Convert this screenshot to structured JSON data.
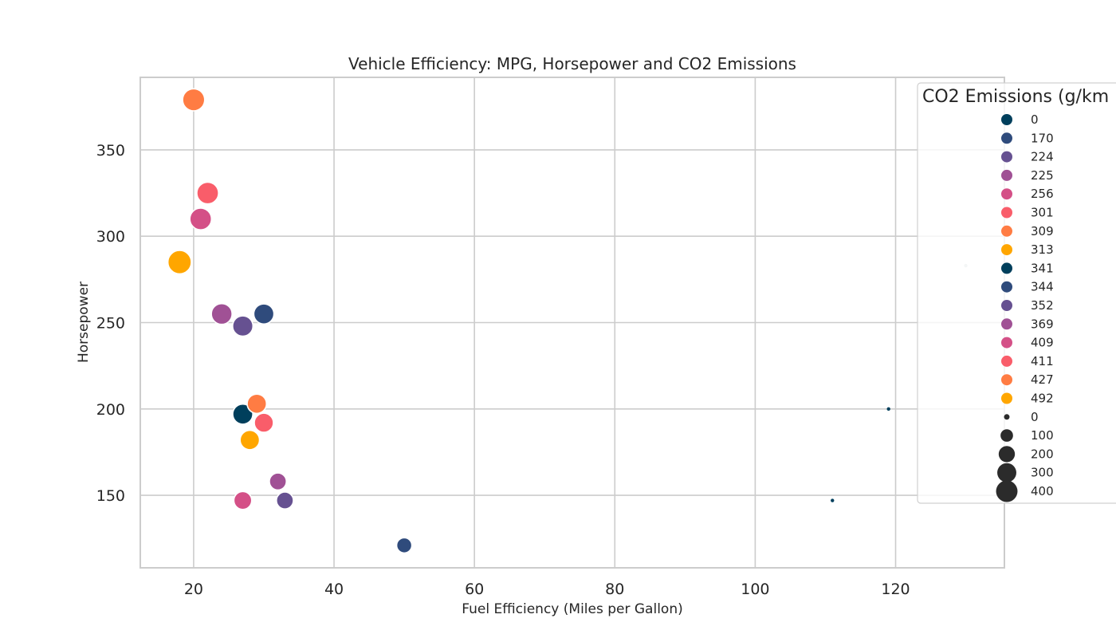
{
  "chart_data": {
    "type": "scatter",
    "title": "Vehicle Efficiency: MPG, Horsepower and CO2 Emissions",
    "xlabel": "Fuel Efficiency (Miles per Gallon)",
    "ylabel": "Horsepower",
    "xlim": [
      12.4,
      135.5
    ],
    "ylim": [
      108,
      392
    ],
    "xticks": [
      20,
      40,
      60,
      80,
      100,
      120
    ],
    "yticks": [
      150,
      200,
      250,
      300,
      350
    ],
    "grid": true,
    "legend_position": "right",
    "legend_title": "CO2 Emissions (g/km",
    "points": [
      {
        "mpg": 20,
        "hp": 379,
        "co2": 427
      },
      {
        "mpg": 22,
        "hp": 325,
        "co2": 411
      },
      {
        "mpg": 21,
        "hp": 310,
        "co2": 409
      },
      {
        "mpg": 18,
        "hp": 285,
        "co2": 492
      },
      {
        "mpg": 24,
        "hp": 255,
        "co2": 369
      },
      {
        "mpg": 27,
        "hp": 248,
        "co2": 352
      },
      {
        "mpg": 30,
        "hp": 255,
        "co2": 344
      },
      {
        "mpg": 27,
        "hp": 197,
        "co2": 341
      },
      {
        "mpg": 29,
        "hp": 203,
        "co2": 309
      },
      {
        "mpg": 30,
        "hp": 192,
        "co2": 301
      },
      {
        "mpg": 28,
        "hp": 182,
        "co2": 313
      },
      {
        "mpg": 32,
        "hp": 158,
        "co2": 225
      },
      {
        "mpg": 27,
        "hp": 147,
        "co2": 256
      },
      {
        "mpg": 33,
        "hp": 147,
        "co2": 224
      },
      {
        "mpg": 50,
        "hp": 121,
        "co2": 170
      },
      {
        "mpg": 111,
        "hp": 147,
        "co2": 0
      },
      {
        "mpg": 119,
        "hp": 200,
        "co2": 0
      },
      {
        "mpg": 130,
        "hp": 283,
        "co2": 0
      }
    ],
    "hue_legend": [
      {
        "label": "0",
        "color": "#003f5c"
      },
      {
        "label": "170",
        "color": "#2f4b7c"
      },
      {
        "label": "224",
        "color": "#665191"
      },
      {
        "label": "225",
        "color": "#a05195"
      },
      {
        "label": "256",
        "color": "#d45087"
      },
      {
        "label": "301",
        "color": "#f95d6a"
      },
      {
        "label": "309",
        "color": "#ff7c43"
      },
      {
        "label": "313",
        "color": "#ffa600"
      },
      {
        "label": "341",
        "color": "#003f5c"
      },
      {
        "label": "344",
        "color": "#2f4b7c"
      },
      {
        "label": "352",
        "color": "#665191"
      },
      {
        "label": "369",
        "color": "#a05195"
      },
      {
        "label": "409",
        "color": "#d45087"
      },
      {
        "label": "411",
        "color": "#f95d6a"
      },
      {
        "label": "427",
        "color": "#ff7c43"
      },
      {
        "label": "492",
        "color": "#ffa600"
      }
    ],
    "size_legend": [
      {
        "label": "0",
        "value": 0
      },
      {
        "label": "100",
        "value": 100
      },
      {
        "label": "200",
        "value": 200
      },
      {
        "label": "300",
        "value": 300
      },
      {
        "label": "400",
        "value": 400
      }
    ],
    "size_marker_color": "#2b2b2b",
    "grid_color": "#cccccc",
    "frame_color": "#cccccc"
  }
}
